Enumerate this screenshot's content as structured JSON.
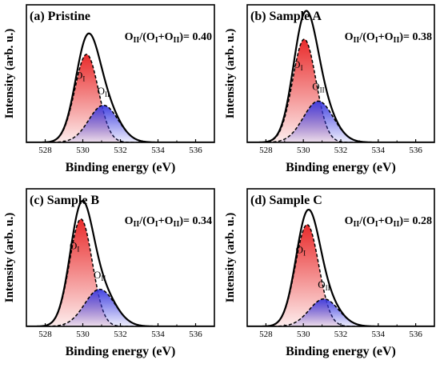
{
  "chart_data": [
    {
      "type": "area",
      "title": "(a) Pristine",
      "ratio_label": {
        "o": "O",
        "num_sub": "II",
        "open": "/(",
        "plus": "+",
        "close": ")",
        "value": "= 0.40"
      },
      "xlabel": "Binding energy (eV)",
      "ylabel": "Intensity (arb. u.)",
      "xlim": [
        527,
        537
      ],
      "ylim": [
        0,
        1
      ],
      "x_ticks": [
        528,
        530,
        532,
        534,
        536
      ],
      "peaks": [
        {
          "name": "OI",
          "sub": "I",
          "center": 530.2,
          "height": 0.64,
          "sigma": 0.62,
          "color": "#e82020"
        },
        {
          "name": "OII",
          "sub": "II",
          "center": 531.1,
          "height": 0.27,
          "sigma": 0.78,
          "color": "#3a3ae0"
        }
      ]
    },
    {
      "type": "area",
      "title": "(b) Sample A",
      "ratio_label": {
        "o": "O",
        "num_sub": "II",
        "open": "/(",
        "plus": "+",
        "close": ")",
        "value": "= 0.38"
      },
      "xlabel": "Binding energy (eV)",
      "ylabel": "Intensity (arb. u.)",
      "xlim": [
        527,
        537
      ],
      "ylim": [
        0,
        1
      ],
      "x_ticks": [
        528,
        530,
        532,
        534,
        536
      ],
      "peaks": [
        {
          "name": "OI",
          "sub": "I",
          "center": 530.05,
          "height": 0.75,
          "sigma": 0.62,
          "color": "#e82020"
        },
        {
          "name": "OII",
          "sub": "II",
          "center": 530.8,
          "height": 0.3,
          "sigma": 0.8,
          "color": "#3a3ae0"
        }
      ]
    },
    {
      "type": "area",
      "title": "(c) Sample B",
      "ratio_label": {
        "o": "O",
        "num_sub": "II",
        "open": "/(",
        "plus": "+",
        "close": ")",
        "value": "= 0.34"
      },
      "xlabel": "Binding energy (eV)",
      "ylabel": "Intensity (arb. u.)",
      "xlim": [
        527,
        537
      ],
      "ylim": [
        0,
        1
      ],
      "x_ticks": [
        528,
        530,
        532,
        534,
        536
      ],
      "peaks": [
        {
          "name": "OI",
          "sub": "I",
          "center": 529.9,
          "height": 0.78,
          "sigma": 0.6,
          "color": "#e82020"
        },
        {
          "name": "OII",
          "sub": "II",
          "center": 530.9,
          "height": 0.27,
          "sigma": 0.8,
          "color": "#3a3ae0"
        }
      ]
    },
    {
      "type": "area",
      "title": "(d) Sample C",
      "ratio_label": {
        "o": "O",
        "num_sub": "II",
        "open": "/(",
        "plus": "+",
        "close": ")",
        "value": "= 0.28"
      },
      "xlabel": "Binding energy (eV)",
      "ylabel": "Intensity (arb. u.)",
      "xlim": [
        527,
        537
      ],
      "ylim": [
        0,
        1
      ],
      "x_ticks": [
        528,
        530,
        532,
        534,
        536
      ],
      "peaks": [
        {
          "name": "OI",
          "sub": "I",
          "center": 530.2,
          "height": 0.74,
          "sigma": 0.62,
          "color": "#e82020"
        },
        {
          "name": "OII",
          "sub": "II",
          "center": 531.1,
          "height": 0.2,
          "sigma": 0.78,
          "color": "#3a3ae0"
        }
      ]
    }
  ]
}
